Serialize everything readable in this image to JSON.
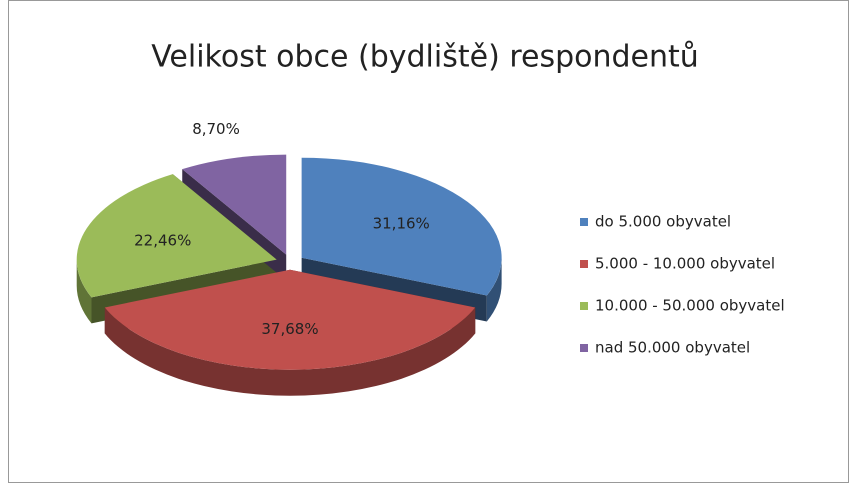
{
  "chart_data": {
    "type": "pie",
    "title": "Velikost obce (bydliště) respondentů",
    "categories": [
      "do 5.000 obyvatel",
      "5.000 - 10.000 obyvatel",
      "10.000 - 50.000 obyvatel",
      "nad 50.000 obyvatel"
    ],
    "values": [
      31.16,
      37.68,
      22.46,
      8.7
    ],
    "value_labels": [
      "31,16%",
      "37,68%",
      "22,46%",
      "8,70%"
    ],
    "colors": [
      "#4f81bd",
      "#c0504d",
      "#9bbb59",
      "#8064a2"
    ],
    "legend": "right"
  }
}
